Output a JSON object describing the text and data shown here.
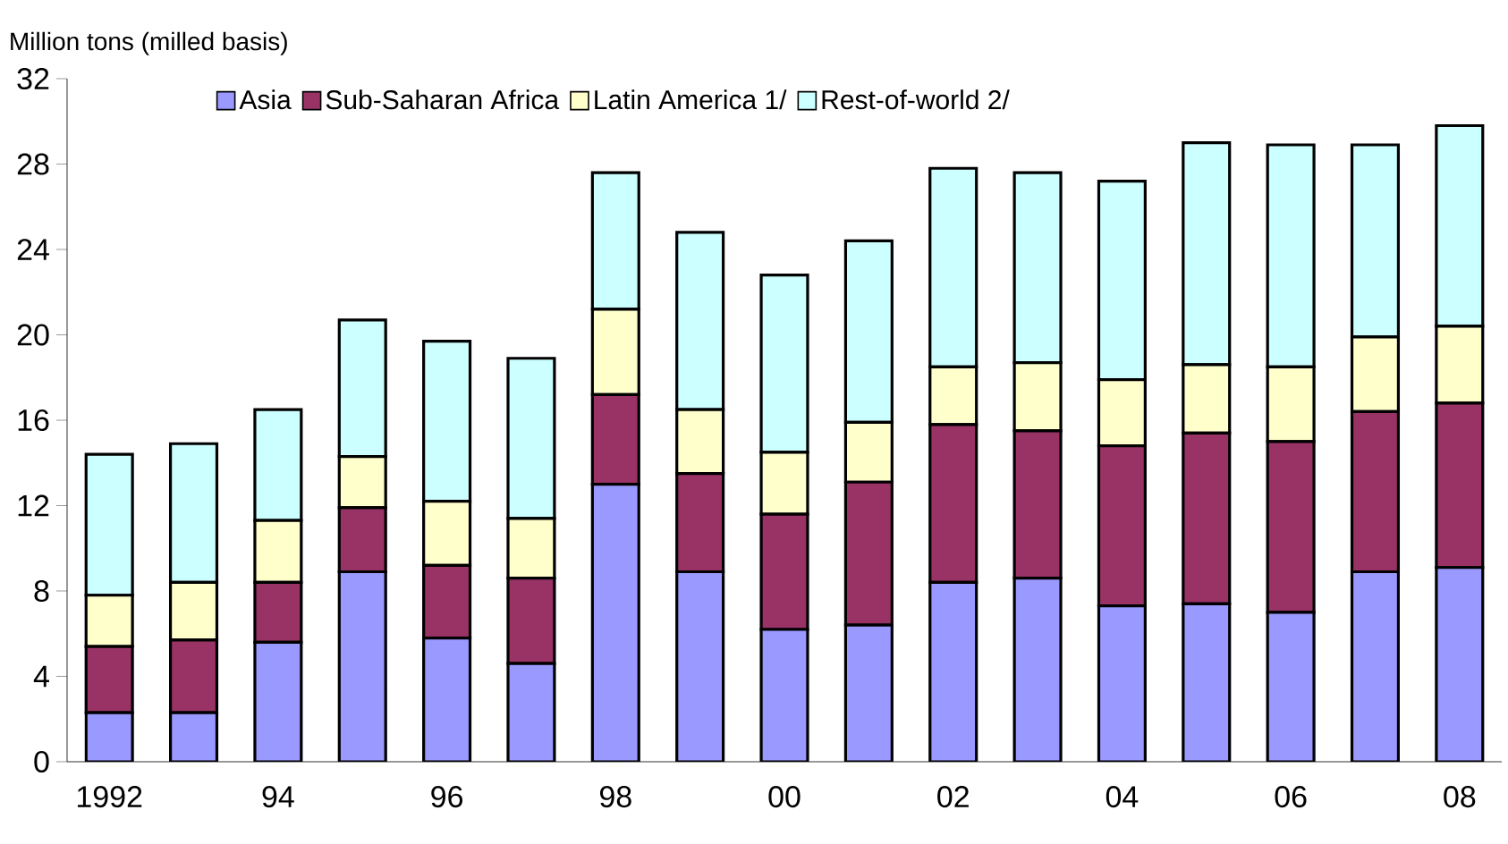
{
  "chart_data": {
    "type": "bar",
    "stacked": true,
    "ylabel": "Million tons (milled basis)",
    "categories": [
      "1992",
      null,
      "94",
      null,
      "96",
      null,
      "98",
      null,
      "00",
      null,
      "02",
      null,
      "04",
      null,
      "06",
      null,
      "08"
    ],
    "series": [
      {
        "name": "Asia",
        "color": "#9999ff",
        "values": [
          2.3,
          2.3,
          5.6,
          8.9,
          5.8,
          4.6,
          13.0,
          8.9,
          6.2,
          6.4,
          8.4,
          8.6,
          7.3,
          7.4,
          7.0,
          8.9,
          9.1
        ]
      },
      {
        "name": "Sub-Saharan Africa",
        "color": "#993366",
        "values": [
          3.1,
          3.4,
          2.8,
          3.0,
          3.4,
          4.0,
          4.2,
          4.6,
          5.4,
          6.7,
          7.4,
          6.9,
          7.5,
          8.0,
          8.0,
          7.5,
          7.7
        ]
      },
      {
        "name": "Latin America 1/",
        "color": "#ffffcc",
        "values": [
          2.4,
          2.7,
          2.9,
          2.4,
          3.0,
          2.8,
          4.0,
          3.0,
          2.9,
          2.8,
          2.7,
          3.2,
          3.1,
          3.2,
          3.5,
          3.5,
          3.6
        ]
      },
      {
        "name": "Rest-of-world 2/",
        "color": "#ccffff",
        "values": [
          6.6,
          6.5,
          5.2,
          6.4,
          7.5,
          7.5,
          6.4,
          8.3,
          8.3,
          8.5,
          9.3,
          8.9,
          9.3,
          10.4,
          10.4,
          9.0,
          9.4
        ]
      }
    ],
    "ylim": [
      0,
      32
    ],
    "yticks": [
      0,
      4,
      8,
      12,
      16,
      20,
      24,
      28,
      32
    ],
    "legend": "top",
    "grid": false
  }
}
